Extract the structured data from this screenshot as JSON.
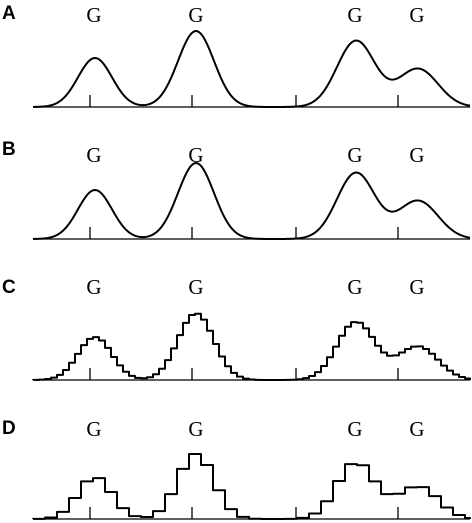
{
  "panels": [
    {
      "letter": "A",
      "peak_labels": [
        "G",
        "G",
        "G",
        "G"
      ],
      "style": "smooth"
    },
    {
      "letter": "B",
      "peak_labels": [
        "G",
        "G",
        "G",
        "G"
      ],
      "style": "smooth"
    },
    {
      "letter": "C",
      "peak_labels": [
        "G",
        "G",
        "G",
        "G"
      ],
      "style": "fine-steps"
    },
    {
      "letter": "D",
      "peak_labels": [
        "G",
        "G",
        "G",
        "G"
      ],
      "style": "coarse-steps"
    }
  ],
  "colors": {
    "stroke": "#000000",
    "background": "#ffffff"
  }
}
